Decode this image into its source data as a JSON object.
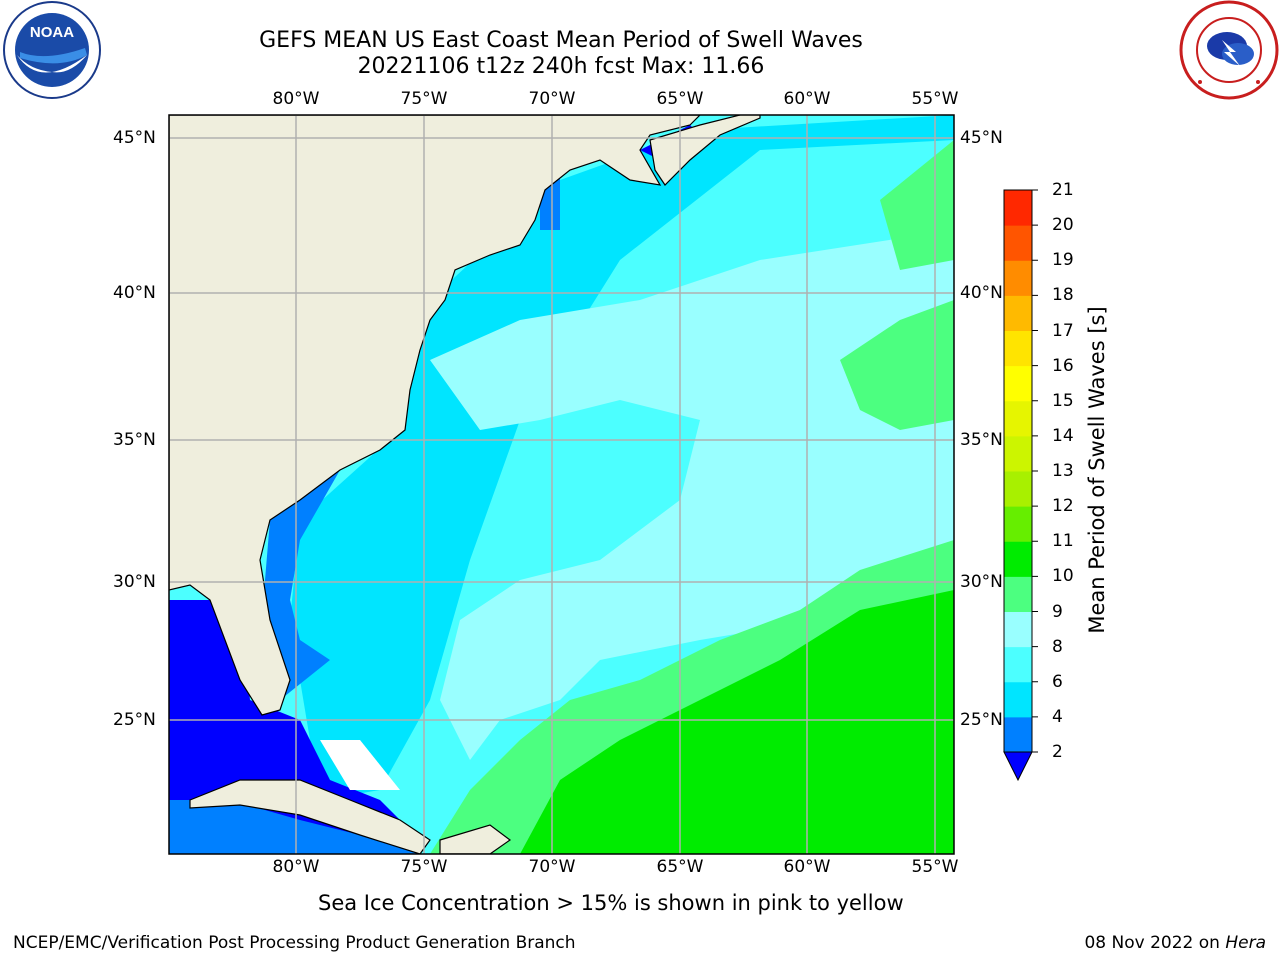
{
  "header": {
    "title": "GEFS MEAN US East Coast Mean Period of Swell Waves",
    "subtitle": "20221106 t12z 240h fcst   Max: 11.66"
  },
  "logos": {
    "left": {
      "icon": "noaa-logo",
      "text": "NOAA"
    },
    "right": {
      "icon": "nws-logo"
    }
  },
  "map": {
    "lon_labels": [
      "80°W",
      "75°W",
      "70°W",
      "65°W",
      "60°W",
      "55°W"
    ],
    "lat_labels": [
      "45°N",
      "40°N",
      "35°N",
      "30°N",
      "25°N"
    ],
    "land_color": "#efeedd",
    "grid_color": "#b0b0b0"
  },
  "colorbar": {
    "label": "Mean Period of Swell Waves [s]",
    "ticks": [
      "2",
      "4",
      "6",
      "8",
      "9",
      "10",
      "11",
      "12",
      "13",
      "14",
      "15",
      "16",
      "17",
      "18",
      "19",
      "20",
      "21"
    ],
    "colors": [
      "#0080ff",
      "#00e5ff",
      "#4cffff",
      "#99ffff",
      "#4cff80",
      "#00ec00",
      "#66ee00",
      "#a8f000",
      "#ccf500",
      "#e6f500",
      "#ffff00",
      "#ffe400",
      "#ffba00",
      "#ff8c00",
      "#ff5500",
      "#ff2800",
      "#ff0000"
    ],
    "under_color": "#0000ff"
  },
  "notes": {
    "ice": "Sea Ice Concentration > 15% is shown in pink to yellow"
  },
  "footer": {
    "left": "NCEP/EMC/Verification Post Processing Product Generation Branch",
    "date": "08 Nov 2022 on ",
    "machine": "Hera"
  }
}
